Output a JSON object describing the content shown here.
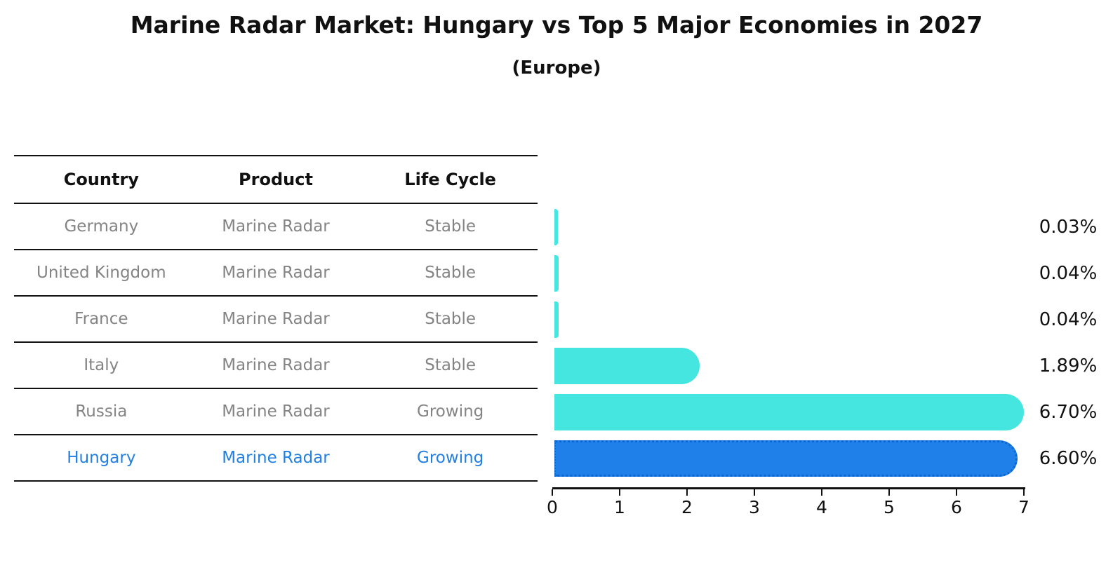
{
  "title": "Marine Radar Market: Hungary vs Top 5 Major Economies in 2027",
  "subtitle": "(Europe)",
  "table": {
    "headers": [
      "Country",
      "Product",
      "Life Cycle"
    ],
    "rows": [
      {
        "country": "Germany",
        "product": "Marine Radar",
        "life_cycle": "Stable",
        "highlighted": false
      },
      {
        "country": "United Kingdom",
        "product": "Marine Radar",
        "life_cycle": "Stable",
        "highlighted": false
      },
      {
        "country": "France",
        "product": "Marine Radar",
        "life_cycle": "Stable",
        "highlighted": false
      },
      {
        "country": "Italy",
        "product": "Marine Radar",
        "life_cycle": "Stable",
        "highlighted": false
      },
      {
        "country": "Russia",
        "product": "Marine Radar",
        "life_cycle": "Growing",
        "highlighted": false
      },
      {
        "country": "Hungary",
        "product": "Marine Radar",
        "life_cycle": "Growing",
        "highlighted": true
      }
    ]
  },
  "chart_data": {
    "type": "bar",
    "orientation": "horizontal",
    "title": "Marine Radar Market: Hungary vs Top 5 Major Economies in 2027",
    "subtitle": "(Europe)",
    "categories": [
      "Germany",
      "United Kingdom",
      "France",
      "Italy",
      "Russia",
      "Hungary"
    ],
    "values": [
      0.03,
      0.04,
      0.04,
      1.89,
      6.7,
      6.6
    ],
    "value_labels": [
      "0.03%",
      "0.04%",
      "0.04%",
      "1.89%",
      "6.70%",
      "6.60%"
    ],
    "xlabel": "",
    "ylabel": "",
    "xlim": [
      0,
      7
    ],
    "x_ticks": [
      "0",
      "1",
      "2",
      "3",
      "4",
      "5",
      "6",
      "7"
    ],
    "grid": false,
    "legend": false,
    "bar_color": "#45e6e0",
    "highlight_color": "#1e80e8",
    "highlight_index": 5,
    "highlight_category": "Hungary"
  },
  "colors": {
    "background": "#ffffff",
    "text_primary": "#111111",
    "text_muted": "#848484",
    "highlight_text": "#2380e0"
  }
}
